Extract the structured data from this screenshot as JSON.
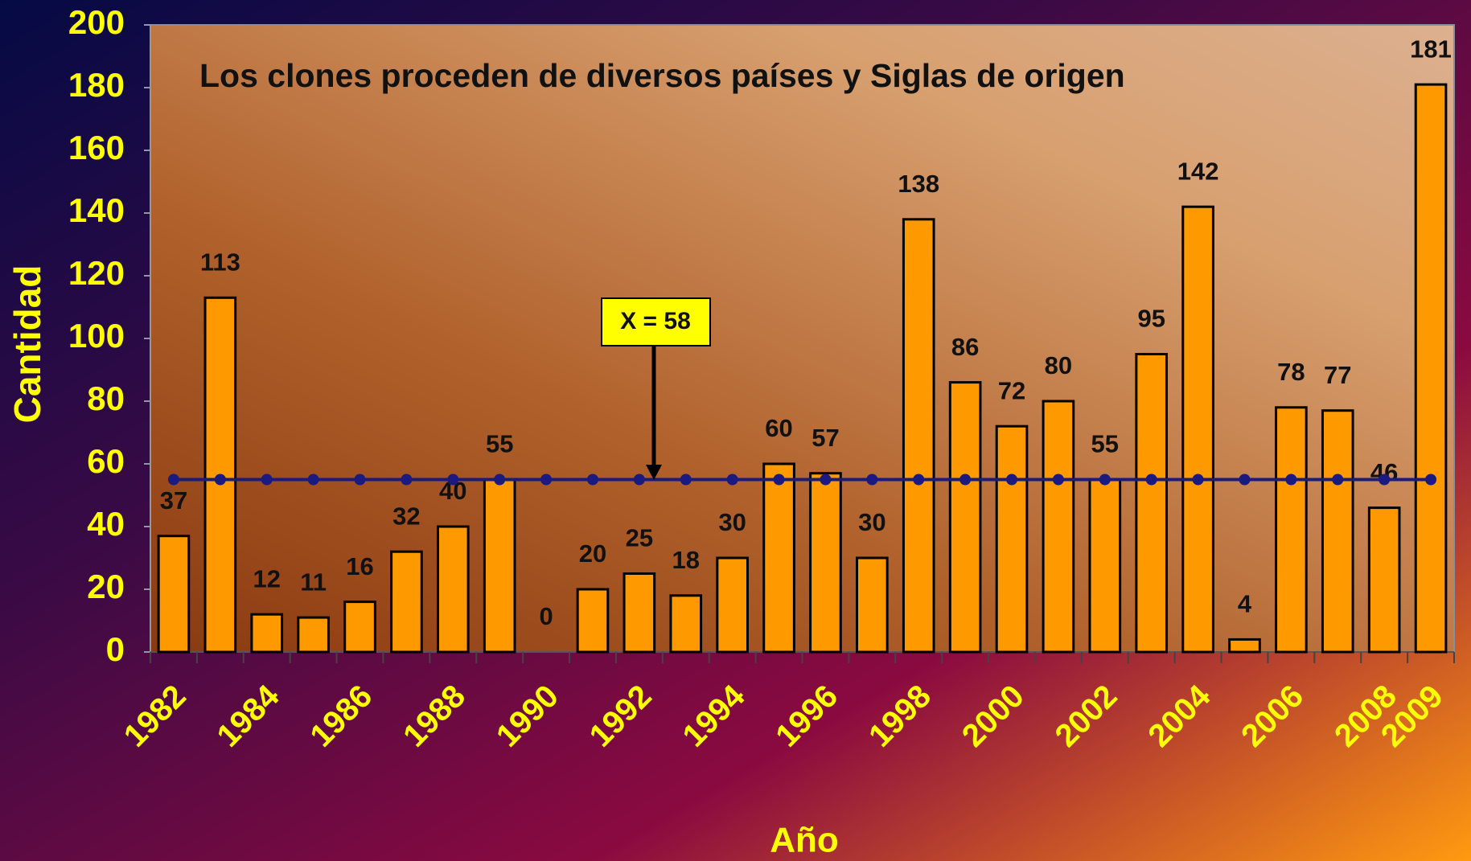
{
  "chart_data": {
    "type": "bar",
    "title": "Los clones proceden de diversos países y Siglas de origen",
    "x_label": "Año",
    "y_label": "Cantidad",
    "annotation": "X = 58",
    "categories": [
      "1982",
      null,
      "1984",
      null,
      "1986",
      null,
      "1988",
      null,
      "1990",
      null,
      "1992",
      null,
      "1994",
      null,
      "1996",
      null,
      "1998",
      null,
      "2000",
      null,
      "2002",
      null,
      "2004",
      null,
      "2006",
      null,
      "2008",
      "2009"
    ],
    "series": [
      {
        "type": "bar",
        "color": "#ff9900",
        "values": [
          37,
          113,
          12,
          11,
          16,
          32,
          40,
          55,
          0,
          20,
          25,
          18,
          30,
          60,
          57,
          30,
          138,
          86,
          72,
          80,
          55,
          95,
          142,
          4,
          78,
          77,
          46,
          181
        ]
      },
      {
        "type": "line",
        "color": "#1a1a80",
        "values": [
          55,
          55,
          55,
          55,
          55,
          55,
          55,
          55,
          55,
          55,
          55,
          55,
          55,
          55,
          55,
          55,
          55,
          55,
          55,
          55,
          55,
          55,
          55,
          55,
          55,
          55,
          55,
          55
        ]
      }
    ],
    "ylim": [
      0,
      200
    ],
    "yticks": [
      0,
      20,
      40,
      60,
      80,
      100,
      120,
      140,
      160,
      180,
      200
    ]
  }
}
